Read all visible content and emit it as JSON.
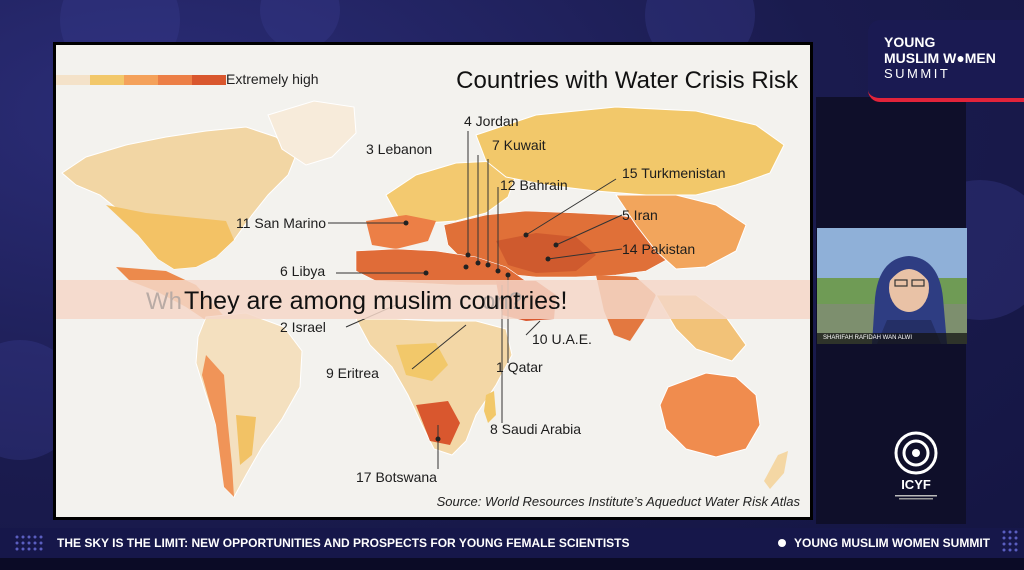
{
  "slide": {
    "title": "Countries with Water Crisis Risk",
    "legend_label": "Extremely high",
    "legend_colors": [
      "#f4e2c9",
      "#f2c86a",
      "#f4a15a",
      "#ec7f46",
      "#d9572e"
    ],
    "labels": [
      "4 Jordan",
      "3 Lebanon",
      "7 Kuwait",
      "12 Bahrain",
      "15 Turkmenistan",
      "11 San Marino",
      "5 Iran",
      "14 Pakistan",
      "6 Libya",
      "2 Israel",
      "10 U.A.E.",
      "9 Eritrea",
      "1 Qatar",
      "8 Saudi Arabia",
      "17 Botswana"
    ],
    "caption_ghost": "Wh                                             on?",
    "caption": "They are among muslim countries!",
    "source": "Source: World Resources Institute’s Aqueduct Water Risk Atlas"
  },
  "branding": {
    "logo_line1": "YOUNG",
    "logo_line2": "MUSLIM W●MEN",
    "logo_line3": "SUMMIT",
    "accent_red": "#e2233a",
    "navy": "#1a1a52"
  },
  "speaker": {
    "name": "SHARIFAH RAFIDAH WAN ALWI"
  },
  "org": {
    "name": "ICYF"
  },
  "footer": {
    "ticker": "THE SKY IS THE LIMIT: NEW OPPORTUNITIES AND PROSPECTS FOR YOUNG FEMALE SCIENTISTS",
    "event": "YOUNG MUSLIM WOMEN SUMMIT"
  }
}
